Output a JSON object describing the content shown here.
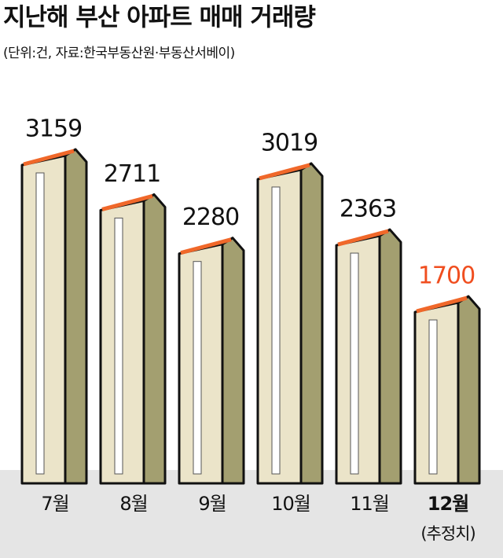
{
  "chart_data": {
    "type": "bar",
    "title": "지난해 부산 아파트 매매 거래량",
    "subtitle": "(단위:건, 자료:한국부동산원·부동산서베이)",
    "categories": [
      "7월",
      "8월",
      "9월",
      "10월",
      "11월",
      "12월"
    ],
    "values": [
      3159,
      2711,
      2280,
      3019,
      2363,
      1700
    ],
    "value_label_colors": [
      "#111111",
      "#111111",
      "#111111",
      "#111111",
      "#111111",
      "#f04e1f"
    ],
    "annotation": "(추정치)",
    "colors": {
      "front": "#ebe4c9",
      "side": "#a39f70",
      "roof": "#f0682a",
      "window": "#ffffff",
      "ground": "#e5e5e5"
    }
  }
}
